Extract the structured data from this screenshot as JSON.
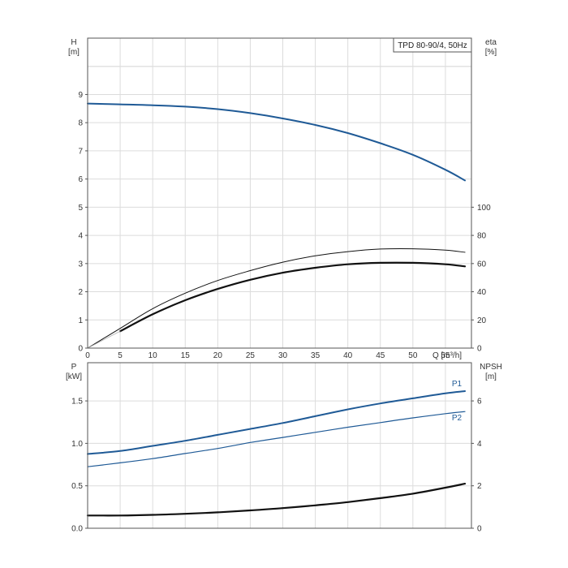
{
  "chart_data": [
    {
      "type": "line",
      "legend_box": "TPD 80-90/4, 50Hz",
      "grid": true,
      "x_axis": {
        "label": "Q [m³/h]",
        "ticks": [
          "0",
          "5",
          "10",
          "15",
          "20",
          "25",
          "30",
          "35",
          "40",
          "45",
          "50",
          "55"
        ],
        "range": [
          0,
          59
        ]
      },
      "y_left": {
        "label_top": "H",
        "label_unit": "[m]",
        "ticks": [
          "0",
          "1",
          "2",
          "3",
          "4",
          "5",
          "6",
          "7",
          "8",
          "9"
        ],
        "range": [
          0,
          11
        ]
      },
      "y_right": {
        "label_top": "eta",
        "label_unit": "[%]",
        "ticks": [
          "0",
          "20",
          "40",
          "60",
          "80",
          "100"
        ],
        "tick_values": [
          0,
          20,
          40,
          60,
          80,
          100
        ],
        "range": [
          0,
          220
        ]
      },
      "series": [
        {
          "axis": "left",
          "color": "#1f5a96",
          "width": 2,
          "points": [
            [
              0,
              8.68
            ],
            [
              5,
              8.65
            ],
            [
              10,
              8.62
            ],
            [
              15,
              8.57
            ],
            [
              20,
              8.48
            ],
            [
              25,
              8.34
            ],
            [
              30,
              8.15
            ],
            [
              35,
              7.92
            ],
            [
              40,
              7.63
            ],
            [
              45,
              7.27
            ],
            [
              50,
              6.86
            ],
            [
              55,
              6.33
            ],
            [
              58,
              5.95
            ]
          ]
        },
        {
          "axis": "right",
          "color": "#111111",
          "width": 1,
          "points": [
            [
              0,
              0
            ],
            [
              5,
              14
            ],
            [
              10,
              28
            ],
            [
              15,
              39
            ],
            [
              20,
              48
            ],
            [
              25,
              55
            ],
            [
              30,
              61
            ],
            [
              35,
              65.5
            ],
            [
              40,
              68.5
            ],
            [
              45,
              70.3
            ],
            [
              50,
              70.5
            ],
            [
              55,
              69.5
            ],
            [
              58,
              68
            ]
          ]
        },
        {
          "axis": "right",
          "color": "#111111",
          "width": 2.2,
          "points": [
            [
              5,
              12
            ],
            [
              10,
              24
            ],
            [
              15,
              34
            ],
            [
              20,
              42
            ],
            [
              25,
              48.5
            ],
            [
              30,
              53.5
            ],
            [
              35,
              57
            ],
            [
              40,
              59.5
            ],
            [
              45,
              60.5
            ],
            [
              50,
              60.5
            ],
            [
              55,
              59.5
            ],
            [
              58,
              58
            ]
          ]
        },
        {
          "axis": "right",
          "color": "#aaaaaa",
          "width": 0.8,
          "points": [
            [
              0,
              0
            ],
            [
              5,
              12
            ]
          ]
        }
      ]
    },
    {
      "type": "line",
      "grid": true,
      "x_axis": {
        "range": [
          0,
          59
        ]
      },
      "y_left": {
        "label_top": "P",
        "label_unit": "[kW]",
        "ticks": [
          "0.0",
          "0.5",
          "1.0",
          "1.5"
        ],
        "tick_values": [
          0,
          0.5,
          1.0,
          1.5
        ],
        "range": [
          0,
          1.95
        ]
      },
      "y_right": {
        "label_top": "NPSH",
        "label_unit": "[m]",
        "ticks": [
          "0",
          "2",
          "4",
          "6"
        ],
        "tick_values": [
          0,
          2,
          4,
          6
        ],
        "range": [
          0,
          7.8
        ]
      },
      "series": [
        {
          "name": "P1",
          "axis": "left",
          "color": "#1f5a96",
          "width": 2,
          "points": [
            [
              0,
              0.875
            ],
            [
              5,
              0.91
            ],
            [
              10,
              0.97
            ],
            [
              15,
              1.03
            ],
            [
              20,
              1.1
            ],
            [
              25,
              1.17
            ],
            [
              30,
              1.24
            ],
            [
              35,
              1.32
            ],
            [
              40,
              1.4
            ],
            [
              45,
              1.47
            ],
            [
              50,
              1.53
            ],
            [
              55,
              1.59
            ],
            [
              58,
              1.615
            ]
          ]
        },
        {
          "name": "P2",
          "axis": "left",
          "color": "#1f5a96",
          "width": 1.2,
          "points": [
            [
              0,
              0.725
            ],
            [
              5,
              0.77
            ],
            [
              10,
              0.82
            ],
            [
              15,
              0.88
            ],
            [
              20,
              0.94
            ],
            [
              25,
              1.01
            ],
            [
              30,
              1.07
            ],
            [
              35,
              1.13
            ],
            [
              40,
              1.19
            ],
            [
              45,
              1.245
            ],
            [
              50,
              1.3
            ],
            [
              55,
              1.35
            ],
            [
              58,
              1.375
            ]
          ]
        },
        {
          "axis": "right",
          "color": "#111111",
          "width": 2.2,
          "points": [
            [
              0,
              0.6
            ],
            [
              5,
              0.6
            ],
            [
              10,
              0.63
            ],
            [
              15,
              0.68
            ],
            [
              20,
              0.75
            ],
            [
              25,
              0.84
            ],
            [
              30,
              0.95
            ],
            [
              35,
              1.08
            ],
            [
              40,
              1.23
            ],
            [
              45,
              1.42
            ],
            [
              50,
              1.63
            ],
            [
              55,
              1.91
            ],
            [
              58,
              2.1
            ]
          ]
        }
      ]
    }
  ]
}
